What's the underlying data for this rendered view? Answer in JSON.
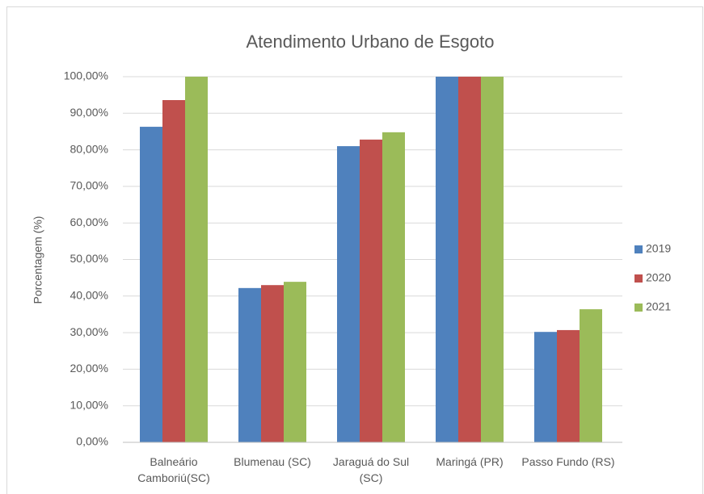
{
  "chart_data": {
    "type": "bar",
    "title": "Atendimento Urbano de Esgoto",
    "y_label": "Porcentagem (%)",
    "categories": [
      "Balneário Camboriú(SC)",
      "Blumenau (SC)",
      "Jaraguá do Sul (SC)",
      "Maringá (PR)",
      "Passo Fundo (RS)"
    ],
    "series": [
      {
        "name": "2019",
        "color": "#4f81bd",
        "values": [
          86.3,
          42.2,
          81.0,
          100,
          30.2
        ]
      },
      {
        "name": "2020",
        "color": "#c0504d",
        "values": [
          93.6,
          43.0,
          82.8,
          100,
          30.7
        ]
      },
      {
        "name": "2021",
        "color": "#9bbb59",
        "values": [
          100,
          43.9,
          84.8,
          100,
          36.4
        ]
      }
    ],
    "ylim": [
      0,
      100
    ],
    "yticks": [
      {
        "value": 0,
        "label": "0,00%"
      },
      {
        "value": 10,
        "label": "10,00%"
      },
      {
        "value": 20,
        "label": "20,00%"
      },
      {
        "value": 30,
        "label": "30,00%"
      },
      {
        "value": 40,
        "label": "40,00%"
      },
      {
        "value": 50,
        "label": "50,00%"
      },
      {
        "value": 60,
        "label": "60,00%"
      },
      {
        "value": 70,
        "label": "70,00%"
      },
      {
        "value": 80,
        "label": "80,00%"
      },
      {
        "value": 90,
        "label": "90,00%"
      },
      {
        "value": 100,
        "label": "100,00%"
      }
    ],
    "grid": true,
    "legend": "right"
  }
}
